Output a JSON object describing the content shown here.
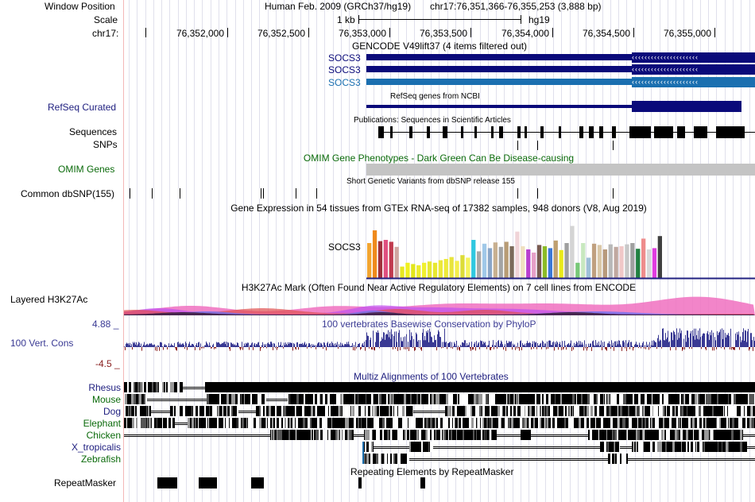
{
  "header": {
    "window_position_label": "Window Position",
    "assembly": "Human Feb. 2009 (GRCh37/hg19)",
    "position": "chr17:76,351,366-76,355,253 (3,888 bp)",
    "scale_label": "Scale",
    "scale_value": "1 kb",
    "scale_assembly": "hg19",
    "chrom_label": "chr17:",
    "ruler_ticks": [
      "76,352,000",
      "76,352,500",
      "76,353,000",
      "76,353,500",
      "76,354,000",
      "76,354,500",
      "76,355,000"
    ]
  },
  "tracks": {
    "gencode": {
      "title": "GENCODE V49lift37 (4 items filtered out)",
      "items": [
        "SOCS3",
        "SOCS3",
        "SOCS3"
      ]
    },
    "refseq": {
      "label": "RefSeq Curated",
      "title": "RefSeq genes from NCBI"
    },
    "sequences": {
      "label": "Sequences",
      "title": "Publications: Sequences in Scientific Articles"
    },
    "snps": {
      "label": "SNPs"
    },
    "omim": {
      "label": "OMIM Genes",
      "title": "OMIM Gene Phenotypes - Dark Green Can Be Disease-causing"
    },
    "dbsnp": {
      "label": "Common dbSNP(155)",
      "title": "Short Genetic Variants from dbSNP release 155"
    },
    "gtex": {
      "title": "Gene Expression in 54 tissues from GTEx RNA-seq of 17382 samples, 948 donors (V8, Aug 2019)",
      "gene": "SOCS3"
    },
    "h3k27ac": {
      "label": "Layered H3K27Ac",
      "title": "H3K27Ac Mark (Often Found Near Active Regulatory Elements) on 7 cell lines from ENCODE"
    },
    "phylop": {
      "label": "100 Vert. Cons",
      "title": "100 vertebrates Basewise Conservation by PhyloP",
      "max": "4.88 _",
      "min": "-4.5 _"
    },
    "multiz": {
      "title": "Multiz Alignments of 100 Vertebrates",
      "species": [
        "Rhesus",
        "Mouse",
        "Dog",
        "Elephant",
        "Chicken",
        "X_tropicalis",
        "Zebrafish"
      ]
    },
    "repeatmasker": {
      "label": "RepeatMasker",
      "title": "Repeating Elements by RepeatMasker"
    }
  },
  "gtex_values": [
    0.55,
    0.75,
    0.58,
    0.6,
    0.57,
    0.49,
    0.18,
    0.24,
    0.22,
    0.2,
    0.24,
    0.26,
    0.24,
    0.28,
    0.3,
    0.33,
    0.27,
    0.36,
    0.32,
    0.6,
    0.42,
    0.54,
    0.47,
    0.56,
    0.49,
    0.57,
    0.5,
    0.73,
    0.5,
    0.45,
    0.4,
    0.52,
    0.5,
    0.47,
    0.59,
    0.44,
    0.55,
    0.82,
    0.24,
    0.55,
    0.32,
    0.54,
    0.52,
    0.45,
    0.53,
    0.49,
    0.5,
    0.53,
    0.55,
    0.46,
    0.62,
    0.45,
    0.47,
    0.66
  ],
  "colors": {
    "gencode_dark": "#0a0a7a",
    "gencode_light": "#1a6fb0",
    "label_blue": "#202080",
    "omim_green": "#0a6a0a",
    "phylop_blue": "#3a3a94",
    "phylop_red": "#8a2020",
    "gtex_palette": [
      "#f2a531",
      "#ef8a1c",
      "#a0303c",
      "#e05080",
      "#c03a4e",
      "#d0a6a0",
      "#e8e820",
      "#f0f020",
      "#e2e61a",
      "#ecec2c",
      "#f0f030",
      "#e6e832",
      "#e8e830",
      "#ece83a",
      "#eeea3a",
      "#e8e43c",
      "#f4ee4a",
      "#dcdc38",
      "#f6f45c",
      "#30c8e0",
      "#a8a8a8",
      "#a0c8e8",
      "#8aa6c8",
      "#c8b090",
      "#a4a4a4",
      "#b89c74",
      "#7a6a5a",
      "#f0d4d8",
      "#f0e0c0",
      "#b840d0",
      "#e6a0c8",
      "#785a50",
      "#8cbc28",
      "#3a78d8",
      "#c0a070",
      "#eaea18",
      "#a0a0a0",
      "#d4d4d4",
      "#78c878",
      "#c8e8c0",
      "#9ec0d8",
      "#c0a080",
      "#dac8a8",
      "#b89a7c",
      "#b8b8b8",
      "#c0a8a0",
      "#f0c8c8",
      "#c8c8c8",
      "#a0a0a0",
      "#208040",
      "#ee8c8c",
      "#d8d8d8",
      "#e03ce0",
      "#404040"
    ]
  }
}
